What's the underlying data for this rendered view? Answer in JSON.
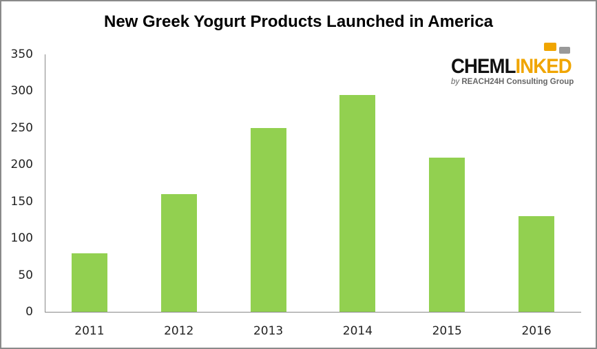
{
  "chart_data": {
    "type": "bar",
    "title": "New Greek Yogurt Products Launched in America",
    "categories": [
      "2011",
      "2012",
      "2013",
      "2014",
      "2015",
      "2016"
    ],
    "values": [
      80,
      160,
      250,
      295,
      210,
      130
    ],
    "xlabel": "",
    "ylabel": "",
    "ylim": [
      0,
      350
    ],
    "yticks": [
      "0",
      "50",
      "100",
      "150",
      "200",
      "250",
      "300",
      "350"
    ],
    "grid": false,
    "legend": null,
    "bar_color": "#92d050"
  },
  "logo": {
    "main_dark": "CHEML",
    "main_accent": "INKED",
    "by": "by",
    "sub": "REACH24H Consulting Group"
  }
}
